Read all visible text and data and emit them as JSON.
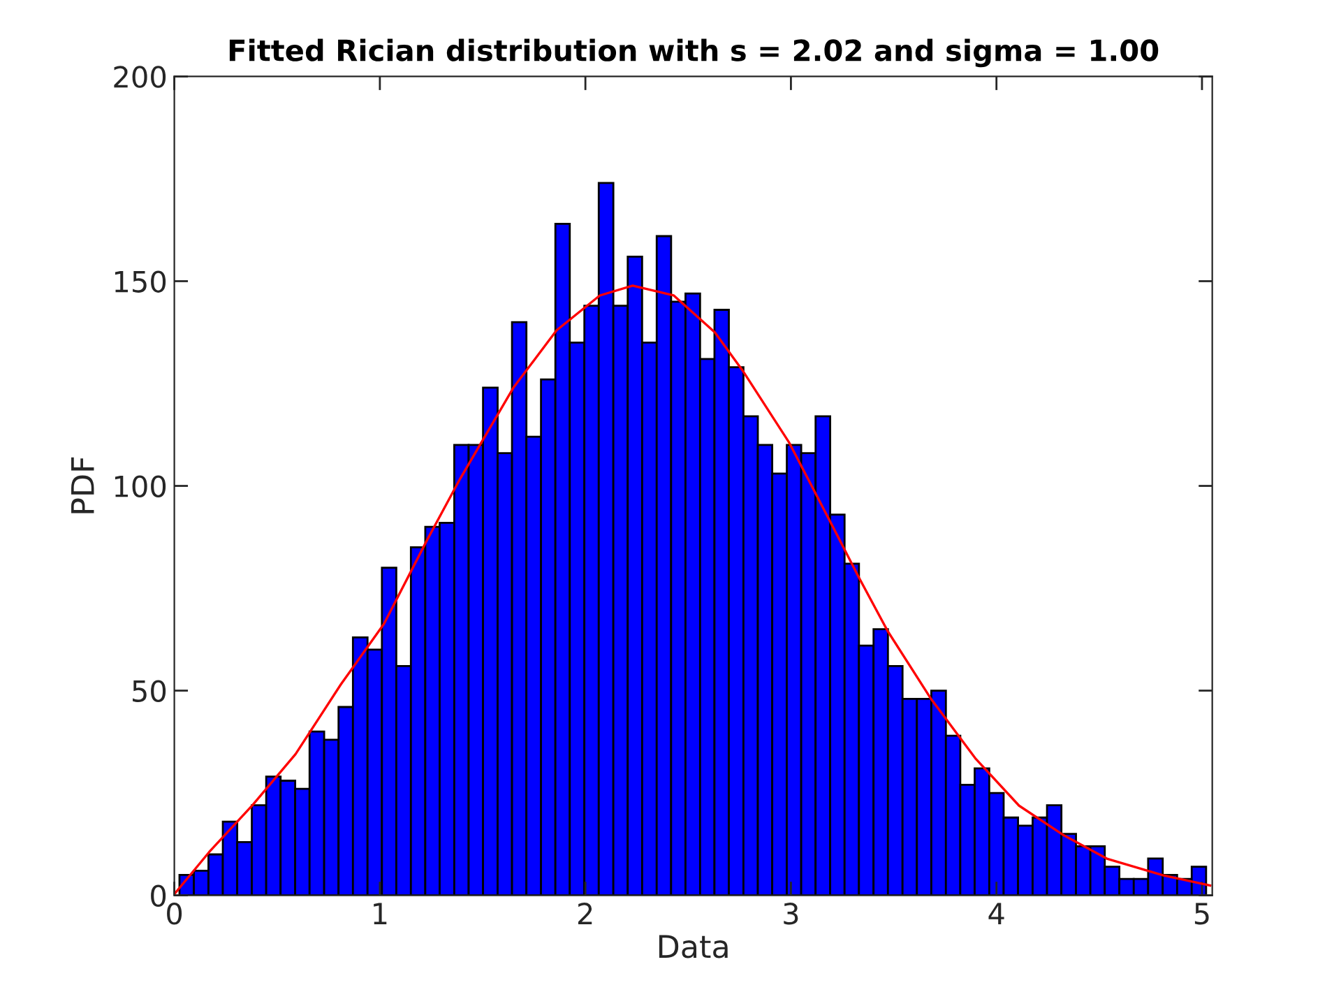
{
  "chart_data": {
    "type": "histogram",
    "title": "Fitted Rician distribution with s = 2.02 and sigma = 1.00",
    "xlabel": "Data",
    "ylabel": "PDF",
    "bins": [
      0.025,
      0.095,
      0.166,
      0.236,
      0.306,
      0.377,
      0.447,
      0.517,
      0.588,
      0.658,
      0.729,
      0.799,
      0.869,
      0.94,
      1.01,
      1.08,
      1.151,
      1.221,
      1.291,
      1.362,
      1.432,
      1.502,
      1.573,
      1.643,
      1.713,
      1.784,
      1.854,
      1.924,
      1.995,
      2.065,
      2.136,
      2.206,
      2.276,
      2.347,
      2.417,
      2.487,
      2.558,
      2.628,
      2.698,
      2.769,
      2.839,
      2.909,
      2.98,
      3.05,
      3.12,
      3.191,
      3.261,
      3.331,
      3.402,
      3.472,
      3.543,
      3.613,
      3.683,
      3.754,
      3.824,
      3.894,
      3.965,
      4.035,
      4.105,
      4.176,
      4.246,
      4.316,
      4.387,
      4.457,
      4.527,
      4.598,
      4.668,
      4.738,
      4.809,
      4.879,
      4.95,
      5.02
    ],
    "values": [
      5,
      6,
      10,
      18,
      13,
      22,
      29,
      28,
      26,
      40,
      38,
      46,
      63,
      60,
      80,
      56,
      85,
      90,
      91,
      110,
      110,
      124,
      108,
      140,
      112,
      126,
      164,
      135,
      144,
      174,
      144,
      156,
      135,
      161,
      145,
      147,
      131,
      143,
      129,
      117,
      110,
      103,
      110,
      108,
      117,
      93,
      81,
      61,
      65,
      56,
      48,
      48,
      50,
      39,
      27,
      31,
      25,
      19,
      17,
      19,
      22,
      15,
      12,
      12,
      7,
      4,
      4,
      9,
      5,
      4,
      7
    ],
    "color": "#0000ff",
    "series": [
      {
        "type": "line",
        "color": "#ff0000",
        "x": [
          0,
          0.17,
          0.38,
          0.59,
          0.81,
          1.02,
          1.23,
          1.39,
          1.65,
          1.86,
          2.07,
          2.23,
          2.43,
          2.63,
          2.77,
          2.99,
          3.19,
          3.33,
          3.47,
          3.68,
          3.9,
          4.11,
          4.33,
          4.54,
          4.81,
          5.04
        ],
        "values": [
          0.3,
          10.6,
          22,
          34.5,
          51.5,
          66.3,
          86.8,
          101.7,
          124,
          138,
          146.5,
          148.9,
          146.5,
          137.5,
          127.8,
          110.7,
          91.4,
          77.7,
          64.6,
          48.1,
          33.3,
          21.9,
          14.6,
          8.9,
          4.9,
          2.4
        ]
      }
    ],
    "xlim": [
      0,
      5.05
    ],
    "ylim": [
      0,
      200
    ],
    "xticks": [
      0,
      1,
      2,
      3,
      4,
      5
    ],
    "yticks": [
      0,
      50,
      100,
      150,
      200
    ],
    "grid": false
  }
}
